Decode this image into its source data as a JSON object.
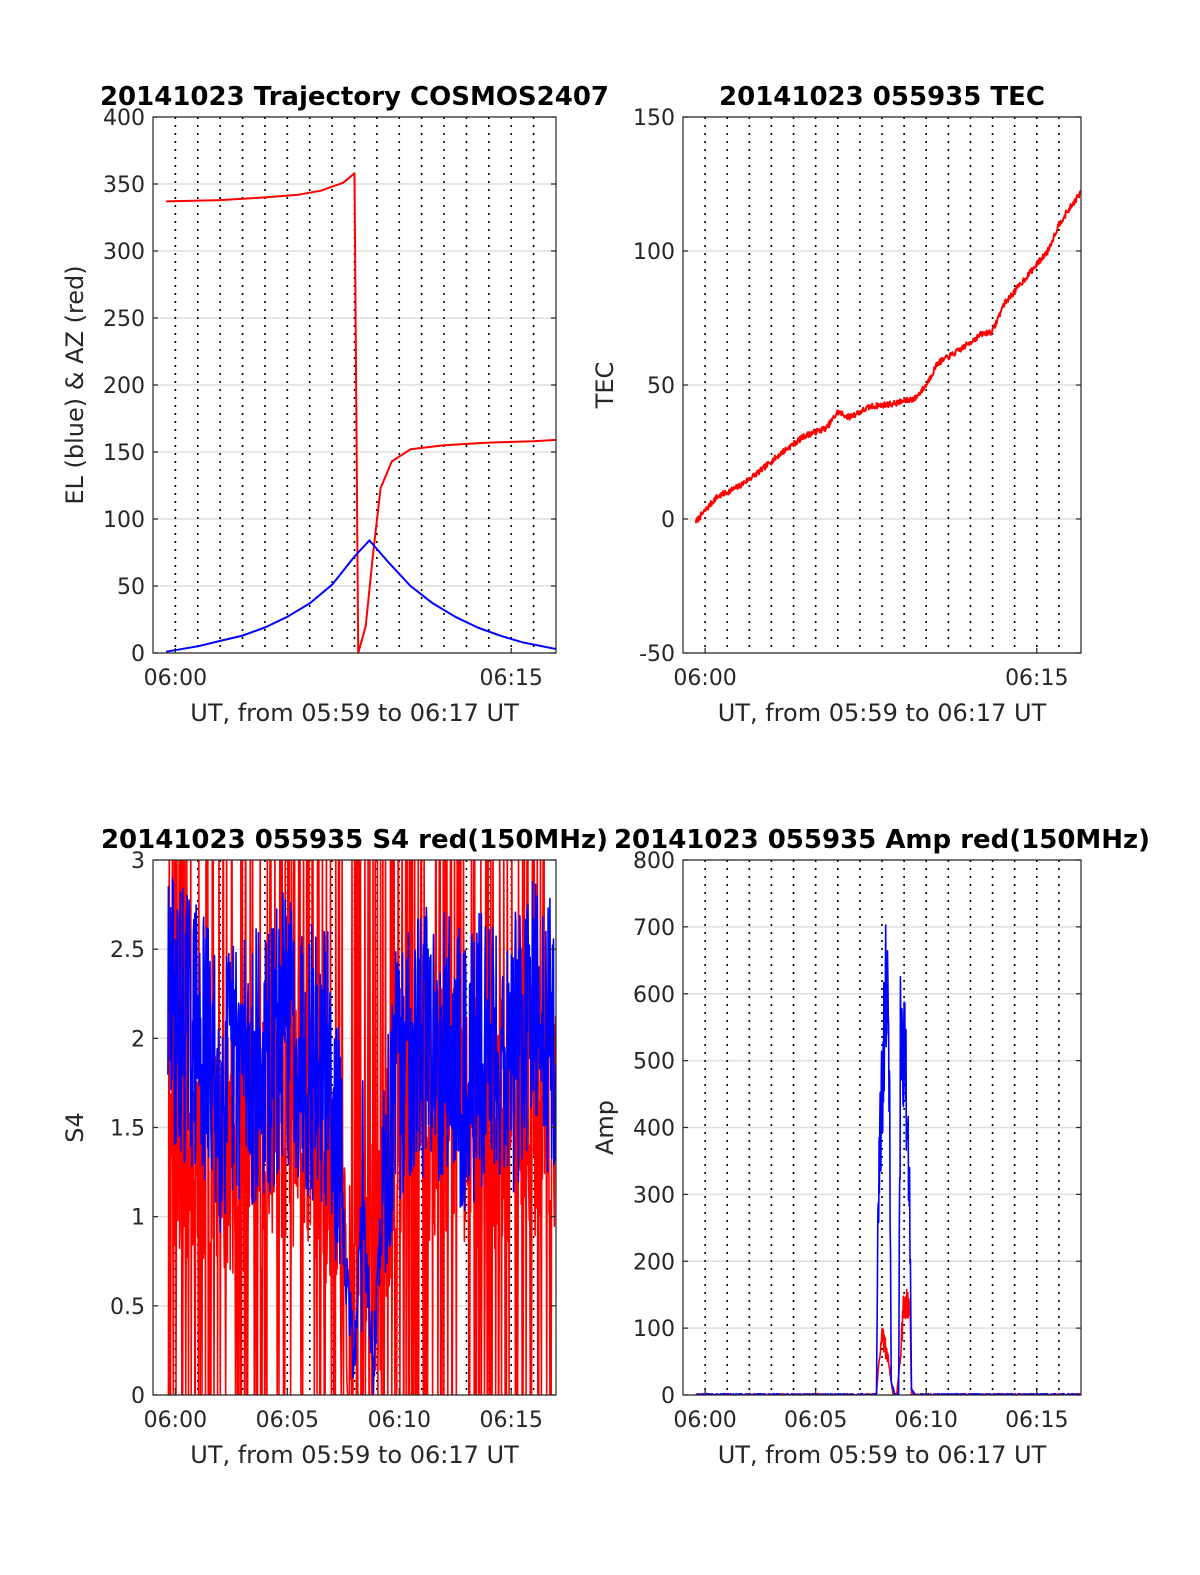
{
  "figure": {
    "colors": {
      "red": "#ff0000",
      "blue": "#0000ff",
      "grid": "#dedede"
    }
  },
  "chart_data": [
    {
      "type": "line",
      "title": "20141023 Trajectory COSMOS2407",
      "xlabel": "UT, from 05:59 to 06:17 UT",
      "ylabel": "EL (blue) & AZ (red)",
      "xlim": [
        "05:59",
        "06:17"
      ],
      "ylim": [
        0,
        400
      ],
      "yticks": [
        0,
        50,
        100,
        150,
        200,
        250,
        300,
        350,
        400
      ],
      "xticks": [
        {
          "t": "06:00",
          "label": "06:00"
        },
        {
          "t": "06:15",
          "label": "06:15"
        }
      ],
      "grid_minutes": true,
      "series": [
        {
          "color": "red",
          "x": [
            "05:59:35",
            "06:02:00",
            "06:04:00",
            "06:05:30",
            "06:06:30",
            "06:07:30",
            "06:08:00",
            "06:08:10",
            "06:08:30",
            "06:08:50",
            "06:09:10",
            "06:09:40",
            "06:10:30",
            "06:12:00",
            "06:14:00",
            "06:16:00",
            "06:17:00"
          ],
          "y": [
            337,
            338,
            340,
            342,
            345,
            351,
            358,
            0,
            20,
            75,
            123,
            143,
            152,
            155,
            157,
            158,
            159
          ]
        },
        {
          "color": "blue",
          "x": [
            "05:59:35",
            "06:01:00",
            "06:02:00",
            "06:03:00",
            "06:04:00",
            "06:05:00",
            "06:06:00",
            "06:07:00",
            "06:08:00",
            "06:08:40",
            "06:09:30",
            "06:10:30",
            "06:11:30",
            "06:12:30",
            "06:13:30",
            "06:14:30",
            "06:15:30",
            "06:17:00"
          ],
          "y": [
            1,
            5,
            9,
            13,
            19,
            27,
            37,
            51,
            72,
            84,
            68,
            50,
            37,
            27,
            19,
            13,
            8,
            3
          ]
        }
      ]
    },
    {
      "type": "line",
      "title": "20141023 055935 TEC",
      "xlabel": "UT, from 05:59 to 06:17 UT",
      "ylabel": "TEC",
      "xlim": [
        "05:59",
        "06:17"
      ],
      "ylim": [
        -50,
        150
      ],
      "yticks": [
        -50,
        0,
        50,
        100,
        150
      ],
      "xticks": [
        {
          "t": "06:00",
          "label": "06:00"
        },
        {
          "t": "06:15",
          "label": "06:15"
        }
      ],
      "grid_minutes": true,
      "series": [
        {
          "color": "red",
          "x": [
            "05:59:35",
            "06:00:30",
            "06:01:30",
            "06:02:30",
            "06:03:30",
            "06:04:30",
            "06:05:30",
            "06:06:00",
            "06:06:30",
            "06:07:30",
            "06:08:30",
            "06:09:30",
            "06:10:00",
            "06:10:30",
            "06:11:30",
            "06:12:30",
            "06:13:00",
            "06:13:30",
            "06:14:30",
            "06:15:30",
            "06:16:00",
            "06:17:00"
          ],
          "y": [
            -1,
            8,
            12,
            18,
            25,
            31,
            34,
            40,
            38,
            42,
            43,
            45,
            50,
            58,
            63,
            69,
            70,
            80,
            90,
            100,
            110,
            122
          ]
        }
      ]
    },
    {
      "type": "line",
      "title": "20141023 055935 S4 red(150MHz)",
      "xlabel": "UT, from 05:59 to 06:17 UT",
      "ylabel": "S4",
      "xlim": [
        "05:59",
        "06:17"
      ],
      "ylim": [
        0,
        3
      ],
      "yticks": [
        0,
        0.5,
        1,
        1.5,
        2,
        2.5,
        3
      ],
      "xticks": [
        {
          "t": "06:00",
          "label": "06:00"
        },
        {
          "t": "06:05",
          "label": "06:05"
        },
        {
          "t": "06:10",
          "label": "06:10"
        },
        {
          "t": "06:15",
          "label": "06:15"
        }
      ],
      "grid_minutes": true,
      "series": [
        {
          "color": "red",
          "x": [
            "05:59:40",
            "06:02:00",
            "06:04:00",
            "06:06:00",
            "06:07:30",
            "06:08:00",
            "06:08:30",
            "06:09:00",
            "06:09:30",
            "06:10:00",
            "06:12:00",
            "06:14:00",
            "06:16:00",
            "06:17:00"
          ],
          "y": [
            1.5,
            1.3,
            1.4,
            1.5,
            0.8,
            0.3,
            0.9,
            0.6,
            1.2,
            1.5,
            1.6,
            1.5,
            1.6,
            1.5
          ]
        },
        {
          "color": "blue",
          "x": [
            "05:59:40",
            "06:01:00",
            "06:02:00",
            "06:03:00",
            "06:04:00",
            "06:05:00",
            "06:06:00",
            "06:07:00",
            "06:07:40",
            "06:08:00",
            "06:08:20",
            "06:08:50",
            "06:09:10",
            "06:09:40",
            "06:10:30",
            "06:12:00",
            "06:13:00",
            "06:14:00",
            "06:15:00",
            "06:16:00",
            "06:17:00"
          ],
          "y": [
            2.2,
            2.0,
            1.7,
            1.9,
            1.8,
            2.1,
            1.9,
            1.8,
            0.6,
            0.2,
            1.1,
            0.15,
            0.9,
            1.6,
            2.0,
            2.0,
            1.8,
            2.0,
            1.9,
            2.1,
            2.0
          ]
        }
      ]
    },
    {
      "type": "line",
      "title": "20141023 055935 Amp red(150MHz)",
      "xlabel": "UT, from 05:59 to 06:17 UT",
      "ylabel": "Amp",
      "xlim": [
        "05:59",
        "06:17"
      ],
      "ylim": [
        0,
        800
      ],
      "yticks": [
        0,
        100,
        200,
        300,
        400,
        500,
        600,
        700,
        800
      ],
      "xticks": [
        {
          "t": "06:00",
          "label": "06:00"
        },
        {
          "t": "06:05",
          "label": "06:05"
        },
        {
          "t": "06:10",
          "label": "06:10"
        },
        {
          "t": "06:15",
          "label": "06:15"
        }
      ],
      "grid_minutes": true,
      "series": [
        {
          "color": "red",
          "x": [
            "05:59:35",
            "06:07:45",
            "06:07:50",
            "06:08:00",
            "06:08:15",
            "06:08:30",
            "06:08:40",
            "06:08:50",
            "06:09:00",
            "06:09:15",
            "06:09:20",
            "06:17:00"
          ],
          "y": [
            0,
            0,
            40,
            90,
            60,
            0,
            0,
            60,
            140,
            150,
            0,
            0
          ]
        },
        {
          "color": "blue",
          "x": [
            "05:59:35",
            "06:07:45",
            "06:07:50",
            "06:08:00",
            "06:08:05",
            "06:08:10",
            "06:08:20",
            "06:08:25",
            "06:08:35",
            "06:08:45",
            "06:08:50",
            "06:09:00",
            "06:09:10",
            "06:09:15",
            "06:09:20",
            "06:09:30",
            "06:17:00"
          ],
          "y": [
            0,
            0,
            300,
            450,
            520,
            600,
            500,
            20,
            0,
            0,
            520,
            510,
            400,
            300,
            10,
            0,
            0
          ]
        }
      ]
    }
  ]
}
